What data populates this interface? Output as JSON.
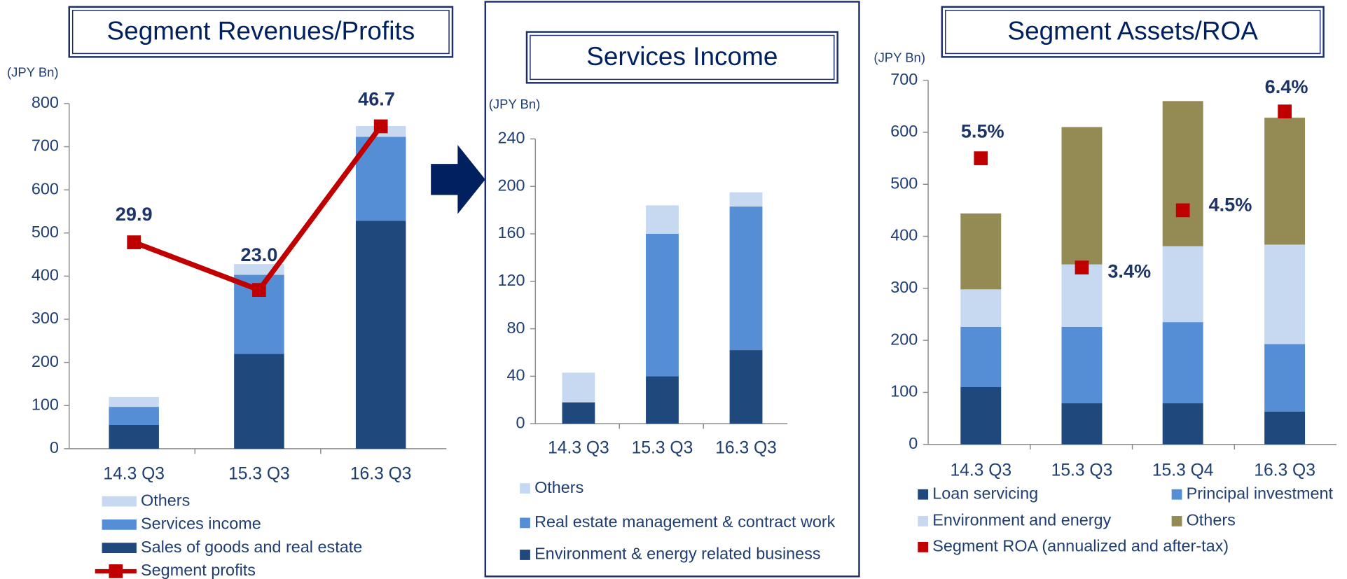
{
  "chart_data": [
    {
      "type": "bar",
      "title": "Segment Revenues/Profits",
      "y_label": "(JPY Bn)",
      "categories": [
        "14.3 Q3",
        "15.3 Q3",
        "16.3 Q3"
      ],
      "series": [
        {
          "name": "Sales of goods and real estate",
          "color": "#1f497d",
          "values": [
            55,
            220,
            528
          ]
        },
        {
          "name": "Services income",
          "color": "#558ed5",
          "values": [
            42,
            183,
            195
          ]
        },
        {
          "name": "Others",
          "color": "#c6d9f1",
          "values": [
            23,
            25,
            25
          ]
        },
        {
          "name": "Segment profits",
          "type": "line",
          "axis": "y2",
          "color": "#c00000",
          "values": [
            29.9,
            23.0,
            46.7
          ],
          "value_labels": [
            "29.9",
            "23.0",
            "46.7"
          ]
        }
      ],
      "stacked": true,
      "ylim": [
        0,
        800
      ],
      "yticks": [
        0,
        100,
        200,
        300,
        400,
        500,
        600,
        700,
        800
      ],
      "y2lim": [
        0,
        50
      ]
    },
    {
      "type": "bar",
      "title": "Services Income",
      "y_label": "(JPY Bn)",
      "categories": [
        "14.3 Q3",
        "15.3 Q3",
        "16.3 Q3"
      ],
      "series": [
        {
          "name": "Environment & energy related business",
          "color": "#1f497d",
          "values": [
            18,
            40,
            62
          ]
        },
        {
          "name": "Real estate management & contract work",
          "color": "#558ed5",
          "values": [
            0,
            120,
            121
          ]
        },
        {
          "name": "Others",
          "color": "#c6d9f1",
          "values": [
            25,
            24,
            12
          ]
        }
      ],
      "stacked": true,
      "ylim": [
        0,
        240
      ],
      "yticks": [
        0,
        40,
        80,
        120,
        160,
        200,
        240
      ]
    },
    {
      "type": "bar",
      "title": "Segment Assets/ROA",
      "y_label": "(JPY Bn)",
      "categories": [
        "14.3 Q3",
        "15.3 Q3",
        "15.3 Q4",
        "16.3 Q3"
      ],
      "series": [
        {
          "name": "Loan servicing",
          "color": "#1f497d",
          "values": [
            110,
            79,
            79,
            63
          ]
        },
        {
          "name": "Principal investment",
          "color": "#558ed5",
          "values": [
            116,
            147,
            156,
            130
          ]
        },
        {
          "name": "Environment and energy",
          "color": "#c6d9f1",
          "values": [
            72,
            120,
            146,
            191
          ]
        },
        {
          "name": "Others",
          "color": "#948a54",
          "values": [
            146,
            264,
            279,
            244
          ]
        },
        {
          "name": "Segment ROA (annualized and after-tax)",
          "type": "scatter",
          "axis": "y2",
          "color": "#c00000",
          "values": [
            5.5,
            3.4,
            4.5,
            6.4
          ],
          "value_labels": [
            "5.5%",
            "3.4%",
            "4.5%",
            "6.4%"
          ]
        }
      ],
      "stacked": true,
      "ylim": [
        0,
        700
      ],
      "yticks": [
        0,
        100,
        200,
        300,
        400,
        500,
        600,
        700
      ],
      "y2lim": [
        0,
        7
      ]
    }
  ]
}
